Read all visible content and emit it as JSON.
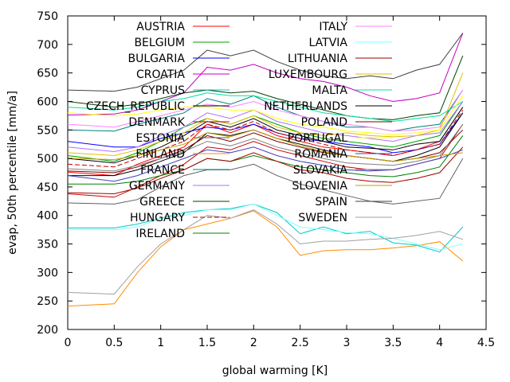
{
  "chart_data": {
    "type": "line",
    "xlabel": "global warming [K]",
    "ylabel": "evap, 50th percentile [mm/a]",
    "xlim": [
      0,
      4.5
    ],
    "ylim": [
      200,
      750
    ],
    "xticks": [
      "0",
      "0.5",
      "1",
      "1.5",
      "2",
      "2.5",
      "3",
      "3.5",
      "4",
      "4.5"
    ],
    "yticks": [
      "200",
      "250",
      "300",
      "350",
      "400",
      "450",
      "500",
      "550",
      "600",
      "650",
      "700",
      "750"
    ],
    "grid": false,
    "legend_placement": "top, two columns",
    "x": [
      0,
      0.5,
      0.75,
      1,
      1.25,
      1.5,
      1.75,
      2,
      2.25,
      2.5,
      2.75,
      3,
      3.25,
      3.5,
      3.75,
      4,
      4.25
    ],
    "series": [
      {
        "name": "AUSTRIA",
        "color": "#ff0000",
        "dash": "",
        "values": [
          476,
          470,
          490,
          505,
          520,
          560,
          545,
          560,
          540,
          530,
          520,
          515,
          510,
          505,
          515,
          530,
          590
        ]
      },
      {
        "name": "BELGIUM",
        "color": "#00a000",
        "dash": "",
        "values": [
          505,
          495,
          510,
          530,
          555,
          570,
          560,
          575,
          560,
          545,
          535,
          530,
          525,
          520,
          530,
          540,
          600
        ]
      },
      {
        "name": "BULGARIA",
        "color": "#0000ff",
        "dash": "",
        "values": [
          530,
          520,
          520,
          535,
          545,
          555,
          550,
          560,
          545,
          535,
          530,
          525,
          520,
          510,
          515,
          525,
          580
        ]
      },
      {
        "name": "CROATIA",
        "color": "#c000c0",
        "dash": "",
        "values": [
          576,
          578,
          585,
          600,
          615,
          660,
          655,
          665,
          650,
          640,
          635,
          625,
          610,
          600,
          605,
          615,
          720
        ]
      },
      {
        "name": "CYPRUS",
        "color": "#00c8c8",
        "dash": "",
        "values": [
          378,
          378,
          385,
          395,
          405,
          410,
          412,
          420,
          405,
          368,
          380,
          368,
          372,
          352,
          348,
          336,
          380
        ]
      },
      {
        "name": "CZECH_REPUBLIC",
        "color": "#000000",
        "dash": "",
        "values": [
          470,
          470,
          480,
          495,
          510,
          545,
          540,
          550,
          535,
          525,
          515,
          505,
          500,
          495,
          505,
          520,
          580
        ]
      },
      {
        "name": "DENMARK",
        "color": "#c80000",
        "dash": "",
        "values": [
          438,
          432,
          450,
          470,
          490,
          520,
          515,
          530,
          515,
          505,
          495,
          485,
          480,
          480,
          490,
          500,
          560
        ]
      },
      {
        "name": "ESTONIA",
        "color": "#606060",
        "dash": "",
        "values": [
          422,
          420,
          428,
          450,
          470,
          480,
          480,
          490,
          470,
          455,
          445,
          435,
          425,
          420,
          425,
          430,
          500
        ]
      },
      {
        "name": "FINLAND",
        "color": "#ff8c00",
        "dash": "",
        "values": [
          241,
          245,
          300,
          345,
          375,
          385,
          395,
          408,
          380,
          330,
          338,
          340,
          340,
          343,
          347,
          354,
          320
        ]
      },
      {
        "name": "FRANCE",
        "color": "#008080",
        "dash": "",
        "values": [
          550,
          548,
          560,
          570,
          580,
          605,
          595,
          610,
          590,
          575,
          565,
          555,
          555,
          548,
          555,
          560,
          620
        ]
      },
      {
        "name": "GERMANY",
        "color": "#b070ff",
        "dash": "",
        "values": [
          520,
          512,
          520,
          540,
          555,
          580,
          570,
          585,
          565,
          555,
          545,
          540,
          535,
          530,
          540,
          545,
          600
        ]
      },
      {
        "name": "GREECE",
        "color": "#004000",
        "dash": "",
        "values": [
          600,
          590,
          595,
          605,
          615,
          620,
          615,
          618,
          605,
          595,
          585,
          575,
          570,
          568,
          575,
          580,
          680
        ]
      },
      {
        "name": "HUNGARY",
        "color": "#c00000",
        "dash": "6,3",
        "values": [
          490,
          485,
          500,
          515,
          530,
          560,
          550,
          565,
          545,
          535,
          525,
          515,
          510,
          505,
          515,
          525,
          585
        ]
      },
      {
        "name": "IRELAND",
        "color": "#008000",
        "dash": "",
        "values": [
          455,
          455,
          460,
          470,
          480,
          500,
          495,
          505,
          495,
          485,
          480,
          475,
          470,
          468,
          475,
          485,
          540
        ]
      },
      {
        "name": "ITALY",
        "color": "#ff80ff",
        "dash": "",
        "values": [
          560,
          555,
          565,
          575,
          585,
          595,
          590,
          600,
          585,
          575,
          565,
          560,
          555,
          548,
          550,
          555,
          620
        ]
      },
      {
        "name": "LATVIA",
        "color": "#80ffff",
        "dash": "",
        "values": [
          375,
          375,
          380,
          395,
          400,
          410,
          410,
          420,
          400,
          380,
          375,
          370,
          368,
          360,
          350,
          340,
          350
        ]
      },
      {
        "name": "LITHUANIA",
        "color": "#a00000",
        "dash": "",
        "values": [
          440,
          438,
          448,
          465,
          480,
          500,
          495,
          510,
          495,
          480,
          475,
          465,
          460,
          458,
          465,
          475,
          520
        ]
      },
      {
        "name": "LUXEMBOURG",
        "color": "#e0c000",
        "dash": "",
        "values": [
          510,
          505,
          515,
          530,
          545,
          570,
          560,
          575,
          555,
          545,
          540,
          545,
          540,
          538,
          540,
          550,
          650
        ]
      },
      {
        "name": "MALTA",
        "color": "#00e0a0",
        "dash": "",
        "values": [
          590,
          585,
          590,
          600,
          605,
          615,
          610,
          610,
          600,
          590,
          580,
          575,
          570,
          565,
          570,
          575,
          600
        ]
      },
      {
        "name": "NETHERLANDS",
        "color": "#000000",
        "dash": "",
        "values": [
          500,
          492,
          505,
          520,
          540,
          565,
          555,
          570,
          550,
          540,
          530,
          520,
          518,
          515,
          525,
          530,
          590
        ]
      },
      {
        "name": "POLAND",
        "color": "#800000",
        "dash": "",
        "values": [
          478,
          475,
          485,
          500,
          515,
          540,
          530,
          545,
          530,
          520,
          510,
          505,
          500,
          495,
          500,
          510,
          550
        ]
      },
      {
        "name": "PORTUGAL",
        "color": "#ffff00",
        "dash": "",
        "values": [
          580,
          575,
          578,
          585,
          590,
          590,
          585,
          585,
          570,
          560,
          555,
          548,
          545,
          542,
          545,
          550,
          610
        ]
      },
      {
        "name": "ROMANIA",
        "color": "#4040c0",
        "dash": "",
        "values": [
          470,
          460,
          470,
          485,
          500,
          515,
          510,
          520,
          505,
          495,
          488,
          480,
          478,
          480,
          490,
          500,
          515
        ]
      },
      {
        "name": "SLOVAKIA",
        "color": "#808080",
        "dash": "",
        "values": [
          482,
          478,
          488,
          500,
          512,
          530,
          522,
          535,
          520,
          510,
          500,
          492,
          490,
          488,
          495,
          505,
          560
        ]
      },
      {
        "name": "SLOVENIA",
        "color": "#c0a000",
        "dash": "",
        "values": [
          500,
          498,
          505,
          515,
          525,
          545,
          538,
          550,
          535,
          522,
          512,
          505,
          500,
          495,
          500,
          505,
          510
        ]
      },
      {
        "name": "SPAIN",
        "color": "#404040",
        "dash": "",
        "values": [
          620,
          618,
          625,
          640,
          655,
          690,
          680,
          690,
          670,
          655,
          645,
          640,
          645,
          640,
          655,
          665,
          720
        ]
      },
      {
        "name": "SWEDEN",
        "color": "#a0a0a0",
        "dash": "",
        "values": [
          265,
          262,
          310,
          350,
          375,
          400,
          395,
          410,
          385,
          350,
          355,
          355,
          358,
          360,
          365,
          372,
          358
        ]
      }
    ]
  }
}
